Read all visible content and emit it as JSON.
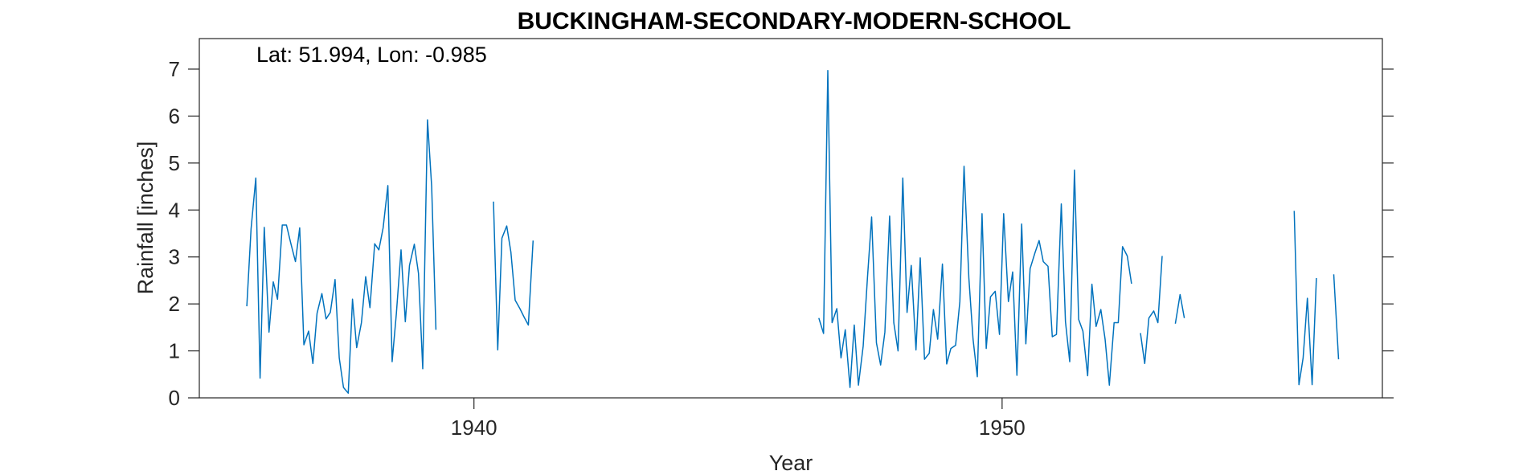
{
  "chart_data": {
    "type": "line",
    "title": "BUCKINGHAM-SECONDARY-MODERN-SCHOOL",
    "annotation": "Lat: 51.994, Lon: -0.985",
    "xlabel": "Year",
    "ylabel": "Rainfall [inches]",
    "xlim": [
      1934.8,
      1957.2
    ],
    "ylim": [
      0,
      7.65
    ],
    "xticks": [
      1940,
      1950
    ],
    "yticks": [
      0,
      1,
      2,
      3,
      4,
      5,
      6,
      7
    ],
    "grid": false,
    "series": [
      {
        "color": "#0072BD",
        "segments": [
          [
            [
              1935.7,
              1.95
            ],
            [
              1935.78,
              3.6
            ],
            [
              1935.87,
              4.68
            ],
            [
              1935.95,
              0.42
            ],
            [
              1936.03,
              3.63
            ],
            [
              1936.12,
              1.4
            ],
            [
              1936.2,
              2.47
            ],
            [
              1936.28,
              2.1
            ],
            [
              1936.37,
              3.68
            ],
            [
              1936.45,
              3.68
            ],
            [
              1936.53,
              3.3
            ],
            [
              1936.62,
              2.9
            ],
            [
              1936.7,
              3.62
            ],
            [
              1936.78,
              1.13
            ],
            [
              1936.87,
              1.42
            ],
            [
              1936.95,
              0.73
            ],
            [
              1937.03,
              1.8
            ],
            [
              1937.12,
              2.22
            ],
            [
              1937.2,
              1.68
            ],
            [
              1937.28,
              1.82
            ],
            [
              1937.37,
              2.52
            ],
            [
              1937.45,
              0.85
            ],
            [
              1937.53,
              0.22
            ],
            [
              1937.62,
              0.1
            ],
            [
              1937.7,
              2.1
            ],
            [
              1937.78,
              1.07
            ],
            [
              1937.87,
              1.6
            ],
            [
              1937.95,
              2.58
            ],
            [
              1938.03,
              1.92
            ],
            [
              1938.12,
              3.28
            ],
            [
              1938.2,
              3.15
            ],
            [
              1938.28,
              3.62
            ],
            [
              1938.37,
              4.52
            ],
            [
              1938.45,
              0.77
            ],
            [
              1938.53,
              1.78
            ],
            [
              1938.62,
              3.15
            ],
            [
              1938.7,
              1.62
            ],
            [
              1938.78,
              2.82
            ],
            [
              1938.87,
              3.27
            ],
            [
              1938.95,
              2.65
            ],
            [
              1939.03,
              0.62
            ],
            [
              1939.12,
              5.92
            ],
            [
              1939.2,
              4.5
            ],
            [
              1939.28,
              1.45
            ]
          ],
          [
            [
              1940.37,
              4.18
            ],
            [
              1940.45,
              1.02
            ],
            [
              1940.53,
              3.4
            ],
            [
              1940.62,
              3.66
            ],
            [
              1940.7,
              3.1
            ],
            [
              1940.78,
              2.08
            ],
            [
              1940.87,
              1.9
            ],
            [
              1940.95,
              1.72
            ],
            [
              1941.03,
              1.55
            ],
            [
              1941.12,
              3.35
            ]
          ],
          [
            [
              1946.53,
              1.7
            ],
            [
              1946.62,
              1.37
            ],
            [
              1946.7,
              6.97
            ],
            [
              1946.78,
              1.6
            ],
            [
              1946.87,
              1.9
            ],
            [
              1946.95,
              0.85
            ],
            [
              1947.03,
              1.45
            ],
            [
              1947.12,
              0.22
            ],
            [
              1947.2,
              1.55
            ],
            [
              1947.28,
              0.27
            ],
            [
              1947.37,
              1.1
            ],
            [
              1947.45,
              2.55
            ],
            [
              1947.53,
              3.85
            ],
            [
              1947.62,
              1.17
            ],
            [
              1947.7,
              0.7
            ],
            [
              1947.78,
              1.4
            ],
            [
              1947.87,
              3.87
            ],
            [
              1947.95,
              1.6
            ],
            [
              1948.03,
              1.0
            ],
            [
              1948.12,
              4.68
            ],
            [
              1948.2,
              1.82
            ],
            [
              1948.28,
              2.82
            ],
            [
              1948.37,
              1.02
            ],
            [
              1948.45,
              2.98
            ],
            [
              1948.53,
              0.82
            ],
            [
              1948.62,
              0.95
            ],
            [
              1948.7,
              1.88
            ],
            [
              1948.78,
              1.25
            ],
            [
              1948.87,
              2.85
            ],
            [
              1948.95,
              0.72
            ],
            [
              1949.03,
              1.05
            ],
            [
              1949.12,
              1.12
            ],
            [
              1949.2,
              2.05
            ],
            [
              1949.28,
              4.93
            ],
            [
              1949.37,
              2.55
            ],
            [
              1949.45,
              1.25
            ],
            [
              1949.53,
              0.45
            ],
            [
              1949.62,
              3.92
            ],
            [
              1949.7,
              1.05
            ],
            [
              1949.78,
              2.15
            ],
            [
              1949.87,
              2.27
            ],
            [
              1949.95,
              1.35
            ],
            [
              1950.03,
              3.92
            ],
            [
              1950.12,
              2.05
            ],
            [
              1950.2,
              2.68
            ],
            [
              1950.28,
              0.48
            ],
            [
              1950.37,
              3.7
            ],
            [
              1950.45,
              1.15
            ],
            [
              1950.53,
              2.75
            ],
            [
              1950.62,
              3.08
            ],
            [
              1950.7,
              3.35
            ],
            [
              1950.78,
              2.9
            ],
            [
              1950.87,
              2.8
            ],
            [
              1950.95,
              1.3
            ],
            [
              1951.03,
              1.35
            ],
            [
              1951.12,
              4.13
            ],
            [
              1951.2,
              1.62
            ],
            [
              1951.28,
              0.77
            ],
            [
              1951.37,
              4.85
            ],
            [
              1951.45,
              1.67
            ],
            [
              1951.53,
              1.42
            ],
            [
              1951.62,
              0.47
            ],
            [
              1951.7,
              2.42
            ],
            [
              1951.78,
              1.52
            ],
            [
              1951.87,
              1.88
            ],
            [
              1951.95,
              1.25
            ],
            [
              1952.03,
              0.27
            ],
            [
              1952.12,
              1.6
            ],
            [
              1952.2,
              1.6
            ],
            [
              1952.28,
              3.22
            ],
            [
              1952.37,
              3.02
            ],
            [
              1952.45,
              2.43
            ]
          ],
          [
            [
              1952.62,
              1.38
            ],
            [
              1952.7,
              0.73
            ],
            [
              1952.78,
              1.7
            ],
            [
              1952.87,
              1.85
            ],
            [
              1952.95,
              1.6
            ],
            [
              1953.03,
              3.02
            ]
          ],
          [
            [
              1953.28,
              1.58
            ],
            [
              1953.37,
              2.2
            ],
            [
              1953.45,
              1.7
            ]
          ],
          [
            [
              1955.53,
              3.98
            ],
            [
              1955.62,
              0.28
            ],
            [
              1955.7,
              0.85
            ],
            [
              1955.78,
              2.12
            ],
            [
              1955.87,
              0.28
            ],
            [
              1955.95,
              2.55
            ]
          ],
          [
            [
              1956.28,
              2.63
            ],
            [
              1956.37,
              0.82
            ]
          ]
        ]
      }
    ]
  }
}
